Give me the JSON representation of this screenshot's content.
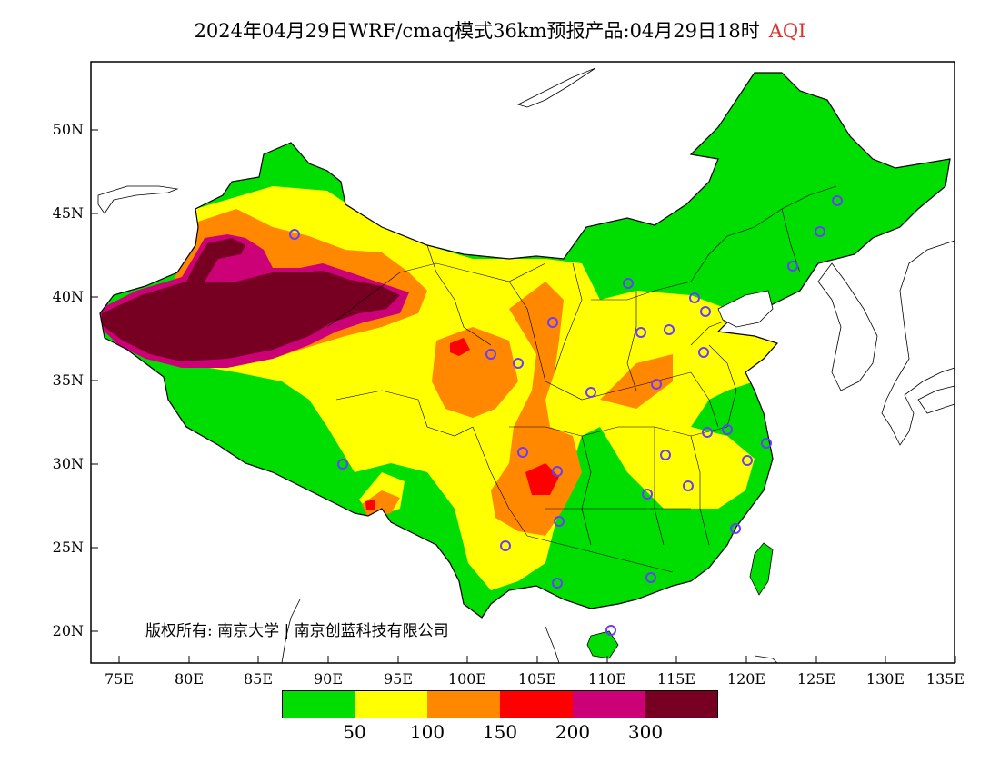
{
  "header": {
    "title": "2024年04月29日WRF/cmaq模式36km预报产品:04月29日18时",
    "aqi_label": "AQI"
  },
  "axes": {
    "lat_labels": [
      "50N",
      "45N",
      "40N",
      "35N",
      "30N",
      "25N",
      "20N"
    ],
    "lon_labels": [
      "75E",
      "80E",
      "85E",
      "90E",
      "95E",
      "100E",
      "105E",
      "110E",
      "115E",
      "120E",
      "125E",
      "130E",
      "135E"
    ]
  },
  "legend": {
    "colors": [
      "#00dd00",
      "#ffff00",
      "#ff8800",
      "#ff0000",
      "#cc0077",
      "#770022"
    ],
    "labels": [
      "50",
      "100",
      "150",
      "200",
      "300"
    ]
  },
  "copyright": "版权所有: 南京大学 | 南京创蓝科技有限公司",
  "colors": {
    "aqi_label": "#e03030",
    "station_marker": "#6a3cff",
    "border": "#000000"
  }
}
